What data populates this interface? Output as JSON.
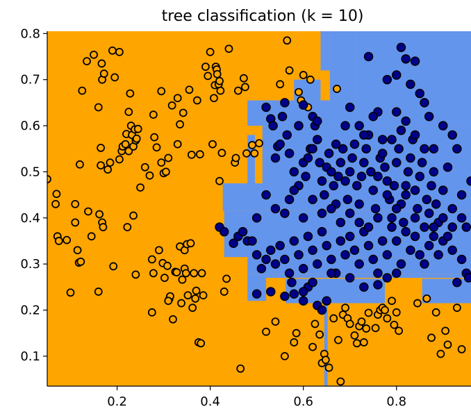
{
  "chart_data": {
    "type": "scatter",
    "title": "tree classification (k = 10)",
    "xlabel": "",
    "ylabel": "",
    "xlim": [
      0.05,
      0.96
    ],
    "ylim": [
      0.035,
      0.805
    ],
    "x_ticks": [
      "0.2",
      "0.4",
      "0.6",
      "0.8"
    ],
    "x_tick_values": [
      0.2,
      0.4,
      0.6,
      0.8
    ],
    "y_ticks": [
      "0.1",
      "0.2",
      "0.3",
      "0.4",
      "0.5",
      "0.6",
      "0.7",
      "0.8"
    ],
    "y_tick_values": [
      0.1,
      0.2,
      0.3,
      0.4,
      0.5,
      0.6,
      0.7,
      0.8
    ],
    "grid": false,
    "colors": {
      "class_0_region": "#ffa500",
      "class_1_region": "#6495ed",
      "class_0_point_face": "#ffa500",
      "class_1_point_face": "#00008b",
      "point_edge": "#000000"
    },
    "decision_regions_class_1": [
      [
        0.637,
        0.657,
        0.72,
        0.81
      ],
      [
        0.657,
        0.712,
        0.65,
        0.81
      ],
      [
        0.712,
        0.96,
        0.63,
        0.81
      ],
      [
        0.58,
        0.637,
        0.655,
        0.7
      ],
      [
        0.48,
        0.96,
        0.6,
        0.655
      ],
      [
        0.48,
        0.496,
        0.6,
        0.62
      ],
      [
        0.512,
        0.96,
        0.475,
        0.6
      ],
      [
        0.48,
        0.496,
        0.475,
        0.58
      ],
      [
        0.427,
        0.96,
        0.415,
        0.475
      ],
      [
        0.43,
        0.96,
        0.315,
        0.415
      ],
      [
        0.48,
        0.96,
        0.278,
        0.315
      ],
      [
        0.48,
        0.52,
        0.22,
        0.278
      ],
      [
        0.52,
        0.96,
        0.27,
        0.278
      ],
      [
        0.562,
        0.775,
        0.215,
        0.268
      ],
      [
        0.855,
        0.96,
        0.215,
        0.268
      ],
      [
        0.645,
        0.652,
        0.035,
        0.215
      ]
    ],
    "class_0_points": [
      [
        0.05,
        0.484
      ],
      [
        0.07,
        0.452
      ],
      [
        0.068,
        0.43
      ],
      [
        0.072,
        0.36
      ],
      [
        0.075,
        0.35
      ],
      [
        0.092,
        0.352
      ],
      [
        0.11,
        0.43
      ],
      [
        0.11,
        0.39
      ],
      [
        0.115,
        0.33
      ],
      [
        0.118,
        0.303
      ],
      [
        0.12,
        0.516
      ],
      [
        0.125,
        0.676
      ],
      [
        0.122,
        0.305
      ],
      [
        0.135,
        0.74
      ],
      [
        0.138,
        0.414
      ],
      [
        0.145,
        0.36
      ],
      [
        0.15,
        0.754
      ],
      [
        0.16,
        0.64
      ],
      [
        0.16,
        0.24
      ],
      [
        0.162,
        0.408
      ],
      [
        0.165,
        0.552
      ],
      [
        0.165,
        0.514
      ],
      [
        0.167,
        0.735
      ],
      [
        0.168,
        0.39
      ],
      [
        0.17,
        0.38
      ],
      [
        0.168,
        0.7
      ],
      [
        0.172,
        0.713
      ],
      [
        0.18,
        0.505
      ],
      [
        0.185,
        0.52
      ],
      [
        0.19,
        0.763
      ],
      [
        0.192,
        0.295
      ],
      [
        0.195,
        0.705
      ],
      [
        0.205,
        0.76
      ],
      [
        0.205,
        0.527
      ],
      [
        0.21,
        0.545
      ],
      [
        0.212,
        0.555
      ],
      [
        0.218,
        0.56
      ],
      [
        0.22,
        0.582
      ],
      [
        0.225,
        0.545
      ],
      [
        0.222,
        0.38
      ],
      [
        0.225,
        0.63
      ],
      [
        0.228,
        0.67
      ],
      [
        0.23,
        0.6
      ],
      [
        0.232,
        0.58
      ],
      [
        0.235,
        0.555
      ],
      [
        0.235,
        0.405
      ],
      [
        0.238,
        0.592
      ],
      [
        0.24,
        0.568
      ],
      [
        0.242,
        0.572
      ],
      [
        0.24,
        0.277
      ],
      [
        0.245,
        0.593
      ],
      [
        0.25,
        0.466
      ],
      [
        0.26,
        0.51
      ],
      [
        0.27,
        0.492
      ],
      [
        0.275,
        0.195
      ],
      [
        0.275,
        0.31
      ],
      [
        0.278,
        0.28
      ],
      [
        0.278,
        0.624
      ],
      [
        0.28,
        0.575
      ],
      [
        0.285,
        0.553
      ],
      [
        0.29,
        0.33
      ],
      [
        0.295,
        0.675
      ],
      [
        0.295,
        0.52
      ],
      [
        0.298,
        0.302
      ],
      [
        0.3,
        0.497
      ],
      [
        0.302,
        0.27
      ],
      [
        0.305,
        0.5
      ],
      [
        0.308,
        0.296
      ],
      [
        0.31,
        0.53
      ],
      [
        0.312,
        0.224
      ],
      [
        0.314,
        0.23
      ],
      [
        0.318,
        0.644
      ],
      [
        0.32,
        0.18
      ],
      [
        0.325,
        0.283
      ],
      [
        0.328,
        0.282
      ],
      [
        0.33,
        0.56
      ],
      [
        0.335,
        0.603
      ],
      [
        0.335,
        0.338
      ],
      [
        0.338,
        0.215
      ],
      [
        0.34,
        0.266
      ],
      [
        0.342,
        0.628
      ],
      [
        0.345,
        0.29
      ],
      [
        0.345,
        0.33
      ],
      [
        0.348,
        0.28
      ],
      [
        0.35,
        0.343
      ],
      [
        0.352,
        0.232
      ],
      [
        0.355,
        0.678
      ],
      [
        0.358,
        0.345
      ],
      [
        0.36,
        0.537
      ],
      [
        0.362,
        0.205
      ],
      [
        0.365,
        0.28
      ],
      [
        0.368,
        0.225
      ],
      [
        0.37,
        0.242
      ],
      [
        0.372,
        0.655
      ],
      [
        0.375,
        0.13
      ],
      [
        0.378,
        0.538
      ],
      [
        0.38,
        0.128
      ],
      [
        0.382,
        0.28
      ],
      [
        0.385,
        0.232
      ],
      [
        0.39,
        0.728
      ],
      [
        0.395,
        0.708
      ],
      [
        0.4,
        0.76
      ],
      [
        0.405,
        0.56
      ],
      [
        0.408,
        0.66
      ],
      [
        0.41,
        0.688
      ],
      [
        0.412,
        0.728
      ],
      [
        0.414,
        0.722
      ],
      [
        0.415,
        0.712
      ],
      [
        0.418,
        0.69
      ],
      [
        0.42,
        0.48
      ],
      [
        0.42,
        0.697
      ],
      [
        0.422,
        0.676
      ],
      [
        0.425,
        0.541
      ],
      [
        0.43,
        0.24
      ],
      [
        0.435,
        0.268
      ],
      [
        0.44,
        0.767
      ],
      [
        0.453,
        0.52
      ],
      [
        0.455,
        0.53
      ],
      [
        0.46,
        0.676
      ],
      [
        0.465,
        0.073
      ],
      [
        0.472,
        0.703
      ],
      [
        0.475,
        0.684
      ],
      [
        0.478,
        0.54
      ],
      [
        0.49,
        0.558
      ],
      [
        0.495,
        0.54
      ],
      [
        0.505,
        0.562
      ],
      [
        0.52,
        0.153
      ],
      [
        0.54,
        0.175
      ],
      [
        0.55,
        0.69
      ],
      [
        0.56,
        0.1
      ],
      [
        0.565,
        0.785
      ],
      [
        0.57,
        0.72
      ],
      [
        0.58,
        0.13
      ],
      [
        0.585,
        0.15
      ],
      [
        0.59,
        0.673
      ],
      [
        0.595,
        0.655
      ],
      [
        0.6,
        0.71
      ],
      [
        0.61,
        0.64
      ],
      [
        0.615,
        0.7
      ],
      [
        0.62,
        0.12
      ],
      [
        0.625,
        0.17
      ],
      [
        0.635,
        0.147
      ],
      [
        0.64,
        0.085
      ],
      [
        0.645,
        0.105
      ],
      [
        0.648,
        0.092
      ],
      [
        0.655,
        0.075
      ],
      [
        0.665,
        0.182
      ],
      [
        0.672,
        0.68
      ],
      [
        0.675,
        0.135
      ],
      [
        0.68,
        0.045
      ],
      [
        0.685,
        0.19
      ],
      [
        0.69,
        0.205
      ],
      [
        0.695,
        0.182
      ],
      [
        0.7,
        0.17
      ],
      [
        0.71,
        0.145
      ],
      [
        0.715,
        0.128
      ],
      [
        0.72,
        0.165
      ],
      [
        0.725,
        0.175
      ],
      [
        0.73,
        0.13
      ],
      [
        0.735,
        0.16
      ],
      [
        0.74,
        0.194
      ],
      [
        0.755,
        0.161
      ],
      [
        0.76,
        0.19
      ],
      [
        0.765,
        0.2
      ],
      [
        0.77,
        0.205
      ],
      [
        0.775,
        0.2
      ],
      [
        0.78,
        0.182
      ],
      [
        0.79,
        0.22
      ],
      [
        0.795,
        0.168
      ],
      [
        0.8,
        0.195
      ],
      [
        0.805,
        0.155
      ],
      [
        0.845,
        0.215
      ],
      [
        0.865,
        0.225
      ],
      [
        0.875,
        0.14
      ],
      [
        0.885,
        0.195
      ],
      [
        0.895,
        0.105
      ],
      [
        0.905,
        0.155
      ],
      [
        0.91,
        0.125
      ],
      [
        0.93,
        0.205
      ],
      [
        0.94,
        0.115
      ],
      [
        0.1,
        0.238
      ],
      [
        0.31,
        0.22
      ],
      [
        0.33,
        0.66
      ]
    ],
    "class_1_points": [
      [
        0.52,
        0.64
      ],
      [
        0.53,
        0.615
      ],
      [
        0.535,
        0.6
      ],
      [
        0.54,
        0.53
      ],
      [
        0.545,
        0.555
      ],
      [
        0.55,
        0.56
      ],
      [
        0.555,
        0.62
      ],
      [
        0.56,
        0.65
      ],
      [
        0.565,
        0.58
      ],
      [
        0.57,
        0.54
      ],
      [
        0.58,
        0.5
      ],
      [
        0.59,
        0.47
      ],
      [
        0.6,
        0.52
      ],
      [
        0.605,
        0.49
      ],
      [
        0.61,
        0.53
      ],
      [
        0.615,
        0.55
      ],
      [
        0.62,
        0.55
      ],
      [
        0.625,
        0.6
      ],
      [
        0.63,
        0.57
      ],
      [
        0.635,
        0.52
      ],
      [
        0.64,
        0.48
      ],
      [
        0.645,
        0.45
      ],
      [
        0.65,
        0.51
      ],
      [
        0.655,
        0.54
      ],
      [
        0.66,
        0.5
      ],
      [
        0.665,
        0.47
      ],
      [
        0.67,
        0.43
      ],
      [
        0.675,
        0.49
      ],
      [
        0.68,
        0.52
      ],
      [
        0.685,
        0.55
      ],
      [
        0.69,
        0.48
      ],
      [
        0.695,
        0.44
      ],
      [
        0.7,
        0.5
      ],
      [
        0.705,
        0.53
      ],
      [
        0.71,
        0.56
      ],
      [
        0.715,
        0.47
      ],
      [
        0.72,
        0.43
      ],
      [
        0.725,
        0.49
      ],
      [
        0.73,
        0.52
      ],
      [
        0.735,
        0.55
      ],
      [
        0.74,
        0.58
      ],
      [
        0.745,
        0.5
      ],
      [
        0.75,
        0.46
      ],
      [
        0.755,
        0.42
      ],
      [
        0.76,
        0.49
      ],
      [
        0.765,
        0.53
      ],
      [
        0.77,
        0.57
      ],
      [
        0.775,
        0.51
      ],
      [
        0.78,
        0.48
      ],
      [
        0.785,
        0.44
      ],
      [
        0.79,
        0.4
      ],
      [
        0.795,
        0.47
      ],
      [
        0.8,
        0.52
      ],
      [
        0.805,
        0.55
      ],
      [
        0.81,
        0.43
      ],
      [
        0.815,
        0.39
      ],
      [
        0.82,
        0.47
      ],
      [
        0.825,
        0.5
      ],
      [
        0.83,
        0.53
      ],
      [
        0.835,
        0.57
      ],
      [
        0.84,
        0.46
      ],
      [
        0.845,
        0.42
      ],
      [
        0.85,
        0.49
      ],
      [
        0.855,
        0.52
      ],
      [
        0.86,
        0.55
      ],
      [
        0.865,
        0.44
      ],
      [
        0.87,
        0.41
      ],
      [
        0.875,
        0.47
      ],
      [
        0.88,
        0.5
      ],
      [
        0.885,
        0.43
      ],
      [
        0.89,
        0.39
      ],
      [
        0.9,
        0.46
      ],
      [
        0.91,
        0.51
      ],
      [
        0.92,
        0.42
      ],
      [
        0.93,
        0.55
      ],
      [
        0.94,
        0.45
      ],
      [
        0.95,
        0.38
      ],
      [
        0.96,
        0.48
      ],
      [
        0.42,
        0.38
      ],
      [
        0.43,
        0.37
      ],
      [
        0.45,
        0.345
      ],
      [
        0.46,
        0.36
      ],
      [
        0.47,
        0.37
      ],
      [
        0.48,
        0.35
      ],
      [
        0.49,
        0.35
      ],
      [
        0.5,
        0.32
      ],
      [
        0.51,
        0.29
      ],
      [
        0.52,
        0.31
      ],
      [
        0.53,
        0.33
      ],
      [
        0.54,
        0.3
      ],
      [
        0.55,
        0.34
      ],
      [
        0.56,
        0.31
      ],
      [
        0.57,
        0.28
      ],
      [
        0.58,
        0.35
      ],
      [
        0.59,
        0.32
      ],
      [
        0.6,
        0.29
      ],
      [
        0.61,
        0.36
      ],
      [
        0.62,
        0.33
      ],
      [
        0.63,
        0.3
      ],
      [
        0.64,
        0.37
      ],
      [
        0.65,
        0.34
      ],
      [
        0.66,
        0.31
      ],
      [
        0.67,
        0.28
      ],
      [
        0.68,
        0.35
      ],
      [
        0.69,
        0.32
      ],
      [
        0.7,
        0.36
      ],
      [
        0.71,
        0.33
      ],
      [
        0.72,
        0.3
      ],
      [
        0.73,
        0.37
      ],
      [
        0.74,
        0.34
      ],
      [
        0.75,
        0.31
      ],
      [
        0.76,
        0.28
      ],
      [
        0.77,
        0.35
      ],
      [
        0.78,
        0.32
      ],
      [
        0.79,
        0.38
      ],
      [
        0.8,
        0.35
      ],
      [
        0.81,
        0.3
      ],
      [
        0.82,
        0.37
      ],
      [
        0.83,
        0.33
      ],
      [
        0.84,
        0.36
      ],
      [
        0.85,
        0.32
      ],
      [
        0.86,
        0.3
      ],
      [
        0.87,
        0.34
      ],
      [
        0.88,
        0.38
      ],
      [
        0.89,
        0.32
      ],
      [
        0.9,
        0.35
      ],
      [
        0.91,
        0.36
      ],
      [
        0.92,
        0.33
      ],
      [
        0.93,
        0.26
      ],
      [
        0.94,
        0.31
      ],
      [
        0.95,
        0.28
      ],
      [
        0.955,
        0.27
      ],
      [
        0.5,
        0.235
      ],
      [
        0.53,
        0.24
      ],
      [
        0.56,
        0.23
      ],
      [
        0.575,
        0.26
      ],
      [
        0.6,
        0.22
      ],
      [
        0.61,
        0.25
      ],
      [
        0.62,
        0.26
      ],
      [
        0.63,
        0.21
      ],
      [
        0.64,
        0.2
      ],
      [
        0.66,
        0.28
      ],
      [
        0.7,
        0.27
      ],
      [
        0.73,
        0.25
      ],
      [
        0.76,
        0.255
      ],
      [
        0.78,
        0.27
      ],
      [
        0.8,
        0.28
      ],
      [
        0.58,
        0.235
      ],
      [
        0.6,
        0.24
      ],
      [
        0.65,
        0.22
      ],
      [
        0.5,
        0.4
      ],
      [
        0.52,
        0.45
      ],
      [
        0.54,
        0.42
      ],
      [
        0.56,
        0.41
      ],
      [
        0.57,
        0.44
      ],
      [
        0.58,
        0.46
      ],
      [
        0.6,
        0.4
      ],
      [
        0.62,
        0.44
      ],
      [
        0.64,
        0.41
      ],
      [
        0.66,
        0.42
      ],
      [
        0.68,
        0.39
      ],
      [
        0.7,
        0.41
      ],
      [
        0.72,
        0.39
      ],
      [
        0.74,
        0.38
      ],
      [
        0.76,
        0.4
      ],
      [
        0.78,
        0.45
      ],
      [
        0.8,
        0.42
      ],
      [
        0.82,
        0.45
      ],
      [
        0.84,
        0.4
      ],
      [
        0.86,
        0.38
      ],
      [
        0.88,
        0.36
      ],
      [
        0.9,
        0.4
      ],
      [
        0.92,
        0.38
      ],
      [
        0.94,
        0.4
      ],
      [
        0.74,
        0.75
      ],
      [
        0.8,
        0.71
      ],
      [
        0.81,
        0.77
      ],
      [
        0.82,
        0.745
      ],
      [
        0.84,
        0.74
      ],
      [
        0.83,
        0.69
      ],
      [
        0.85,
        0.67
      ],
      [
        0.86,
        0.65
      ],
      [
        0.87,
        0.62
      ],
      [
        0.8,
        0.63
      ],
      [
        0.82,
        0.61
      ],
      [
        0.84,
        0.58
      ],
      [
        0.76,
        0.63
      ],
      [
        0.78,
        0.7
      ],
      [
        0.9,
        0.6
      ],
      [
        0.92,
        0.58
      ],
      [
        0.88,
        0.55
      ],
      [
        0.6,
        0.645
      ],
      [
        0.62,
        0.62
      ],
      [
        0.59,
        0.6
      ],
      [
        0.63,
        0.61
      ],
      [
        0.67,
        0.56
      ],
      [
        0.69,
        0.6
      ],
      [
        0.7,
        0.64
      ],
      [
        0.72,
        0.6
      ],
      [
        0.73,
        0.58
      ],
      [
        0.75,
        0.62
      ],
      [
        0.77,
        0.54
      ],
      [
        0.79,
        0.57
      ],
      [
        0.81,
        0.59
      ]
    ]
  }
}
